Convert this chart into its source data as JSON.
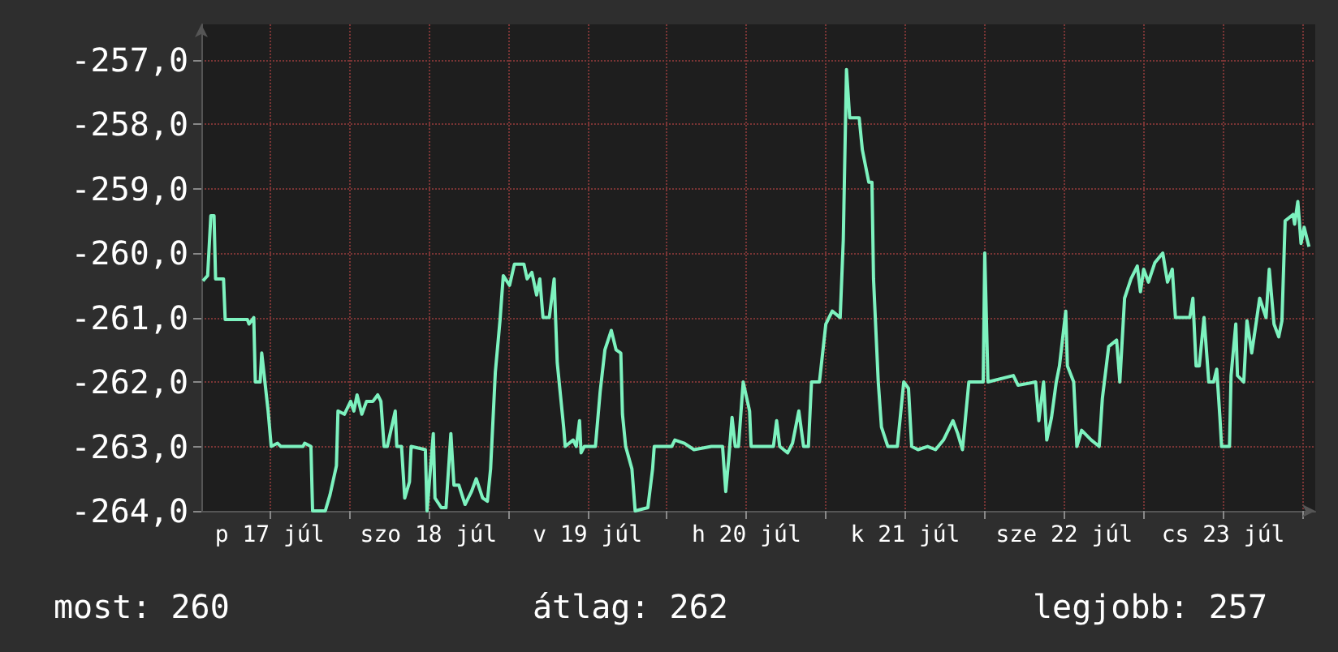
{
  "chart_data": {
    "type": "line",
    "color": "#7df2bf",
    "x": [
      "--07-17T01:55",
      "--07-17T02:38",
      "--07-17T03:07",
      "--07-17T03:36",
      "--07-17T03:50",
      "--07-17T05:02",
      "--07-17T05:17",
      "--07-17T08:38",
      "--07-17T08:53",
      "--07-17T09:36",
      "--07-17T09:50",
      "--07-17T10:34",
      "--07-17T10:48",
      "--07-17T11:17",
      "--07-17T11:46",
      "--07-17T12:14",
      "--07-17T13:12",
      "--07-17T13:41",
      "--07-17T17:02",
      "--07-17T17:17",
      "--07-17T18:14",
      "--07-17T18:29",
      "--07-17T20:24",
      "--07-17T21:07",
      "--07-17T22:05",
      "--07-17T22:19",
      "--07-17T23:17",
      "--07-18T00:14",
      "--07-18T00:43",
      "--07-18T01:12",
      "--07-18T01:55",
      "--07-18T02:38",
      "--07-18T03:36",
      "--07-18T04:19",
      "--07-18T04:48",
      "--07-18T05:17",
      "--07-18T05:46",
      "--07-18T06:58",
      "--07-18T07:12",
      "--07-18T07:55",
      "--07-18T08:24",
      "--07-18T09:07",
      "--07-18T09:22",
      "--07-18T11:31",
      "--07-18T11:46",
      "--07-18T12:43",
      "--07-18T12:58",
      "--07-18T13:55",
      "--07-18T14:38",
      "--07-18T15:22",
      "--07-18T15:50",
      "--07-18T16:34",
      "--07-18T17:31",
      "--07-18T18:29",
      "--07-18T19:12",
      "--07-18T20:10",
      "--07-18T20:53",
      "--07-18T21:22",
      "--07-18T22:05",
      "--07-18T22:48",
      "--07-18T23:17",
      "--07-19T00:14",
      "--07-19T00:58",
      "--07-19T02:24",
      "--07-19T02:53",
      "--07-19T03:36",
      "--07-19T04:19",
      "--07-19T04:48",
      "--07-19T05:17",
      "--07-19T06:14",
      "--07-19T06:58",
      "--07-19T07:26",
      "--07-19T08:24",
      "--07-19T08:38",
      "--07-19T09:50",
      "--07-19T10:19",
      "--07-19T10:48",
      "--07-19T11:02",
      "--07-19T11:31",
      "--07-19T13:12",
      "--07-19T13:55",
      "--07-19T14:38",
      "--07-19T15:36",
      "--07-19T16:19",
      "--07-19T17:02",
      "--07-19T17:17",
      "--07-19T17:46",
      "--07-19T18:43",
      "--07-19T19:12",
      "--07-19T21:07",
      "--07-19T21:50",
      "--07-19T22:05",
      "--07-20T00:43",
      "--07-20T01:12",
      "--07-20T02:38",
      "--07-20T04:05",
      "--07-20T06:43",
      "--07-20T08:24",
      "--07-20T08:53",
      "--07-20T09:22",
      "--07-20T09:50",
      "--07-20T10:19",
      "--07-20T10:48",
      "--07-20T11:31",
      "--07-20T12:29",
      "--07-20T12:43",
      "--07-20T16:05",
      "--07-20T16:34",
      "--07-20T17:02",
      "--07-20T18:14",
      "--07-20T18:58",
      "--07-20T19:55",
      "--07-20T20:38",
      "--07-20T21:22",
      "--07-20T21:50",
      "--07-20T23:02",
      "--07-21T00:00",
      "--07-21T00:58",
      "--07-21T02:10",
      "--07-21T02:38",
      "--07-21T03:07",
      "--07-21T03:36",
      "--07-21T05:02",
      "--07-21T05:31",
      "--07-21T06:29",
      "--07-21T06:58",
      "--07-21T07:12",
      "--07-21T07:55",
      "--07-21T08:24",
      "--07-21T09:22",
      "--07-21T10:48",
      "--07-21T11:46",
      "--07-21T12:29",
      "--07-21T12:58",
      "--07-21T13:55",
      "--07-21T15:22",
      "--07-21T16:34",
      "--07-21T17:46",
      "--07-21T19:12",
      "--07-21T19:55",
      "--07-21T20:38",
      "--07-21T21:36",
      "--07-21T23:46",
      "--07-22T00:00",
      "--07-22T00:29",
      "--07-22T04:19",
      "--07-22T05:02",
      "--07-22T07:41",
      "--07-22T08:10",
      "--07-22T08:53",
      "--07-22T09:22",
      "--07-22T10:05",
      "--07-22T10:48",
      "--07-22T11:17",
      "--07-22T12:14",
      "--07-22T12:29",
      "--07-22T13:26",
      "--07-22T13:55",
      "--07-22T14:38",
      "--07-22T16:05",
      "--07-22T17:17",
      "--07-22T17:46",
      "--07-22T18:43",
      "--07-22T19:55",
      "--07-22T20:24",
      "--07-22T21:07",
      "--07-22T22:05",
      "--07-22T23:02",
      "--07-22T23:31",
      "--07-23T00:00",
      "--07-23T00:43",
      "--07-23T01:41",
      "--07-23T02:53",
      "--07-23T03:36",
      "--07-23T04:19",
      "--07-23T04:48",
      "--07-23T06:58",
      "--07-23T07:26",
      "--07-23T07:55",
      "--07-23T08:24",
      "--07-23T09:07",
      "--07-23T09:50",
      "--07-23T10:34",
      "--07-23T11:02",
      "--07-23T11:31",
      "--07-23T11:46",
      "--07-23T12:58",
      "--07-23T13:12",
      "--07-23T13:55",
      "--07-23T14:10",
      "--07-23T15:07",
      "--07-23T15:36",
      "--07-23T16:19",
      "--07-23T17:02",
      "--07-23T17:31",
      "--07-23T18:29",
      "--07-23T18:58",
      "--07-23T19:41",
      "--07-23T20:24",
      "--07-23T20:53",
      "--07-23T21:22",
      "--07-23T22:34",
      "--07-23T22:48",
      "--07-23T23:17",
      "--07-23T23:46",
      "--07-24T00:14",
      "--07-24T00:58"
    ],
    "values": [
      -260.43,
      -260.35,
      -259.42,
      -259.42,
      -260.4,
      -260.4,
      -261.03,
      -261.03,
      -261.1,
      -261.0,
      -262.0,
      -262.0,
      -261.55,
      -262.0,
      -262.45,
      -263.0,
      -262.95,
      -263.0,
      -263.0,
      -262.95,
      -263.0,
      -264.0,
      -264.0,
      -263.75,
      -263.3,
      -262.45,
      -262.5,
      -262.3,
      -262.45,
      -262.2,
      -262.5,
      -262.3,
      -262.3,
      -262.2,
      -262.3,
      -263.0,
      -263.0,
      -262.45,
      -263.0,
      -263.0,
      -263.8,
      -263.55,
      -263.0,
      -263.05,
      -264.0,
      -262.8,
      -263.8,
      -263.95,
      -263.95,
      -262.8,
      -263.6,
      -263.6,
      -263.9,
      -263.7,
      -263.5,
      -263.8,
      -263.85,
      -263.35,
      -261.85,
      -261.03,
      -260.35,
      -260.5,
      -260.17,
      -260.17,
      -260.4,
      -260.3,
      -260.65,
      -260.4,
      -261.0,
      -261.0,
      -260.4,
      -261.7,
      -262.7,
      -263.0,
      -262.9,
      -263.0,
      -262.6,
      -263.1,
      -263.0,
      -263.0,
      -262.15,
      -261.5,
      -261.2,
      -261.5,
      -261.55,
      -262.5,
      -263.0,
      -263.35,
      -264.0,
      -263.95,
      -263.35,
      -263.0,
      -263.0,
      -262.9,
      -262.95,
      -263.05,
      -263.0,
      -263.0,
      -263.7,
      -263.15,
      -262.55,
      -263.0,
      -263.0,
      -262.0,
      -262.45,
      -263.0,
      -263.0,
      -262.6,
      -263.0,
      -263.1,
      -262.95,
      -262.45,
      -263.0,
      -263.0,
      -262.0,
      -262.0,
      -261.1,
      -260.9,
      -261.0,
      -259.8,
      -257.15,
      -257.9,
      -257.9,
      -258.4,
      -258.9,
      -258.9,
      -260.4,
      -262.0,
      -262.7,
      -263.0,
      -263.0,
      -262.0,
      -262.1,
      -263.0,
      -263.05,
      -263.0,
      -263.05,
      -262.9,
      -262.6,
      -262.8,
      -263.05,
      -262.0,
      -262.0,
      -260.0,
      -262.0,
      -261.9,
      -262.05,
      -262.0,
      -262.6,
      -262.0,
      -262.9,
      -262.55,
      -262.0,
      -261.75,
      -260.9,
      -261.75,
      -262.0,
      -263.0,
      -262.75,
      -262.9,
      -263.0,
      -262.25,
      -261.45,
      -261.35,
      -262.0,
      -260.7,
      -260.4,
      -260.2,
      -260.6,
      -260.25,
      -260.45,
      -260.15,
      -260.0,
      -260.45,
      -260.25,
      -261.0,
      -261.0,
      -260.7,
      -261.75,
      -261.75,
      -261.0,
      -262.0,
      -262.0,
      -261.8,
      -262.55,
      -263.0,
      -263.0,
      -261.9,
      -261.1,
      -261.9,
      -262.0,
      -261.05,
      -261.55,
      -261.05,
      -260.7,
      -261.0,
      -260.25,
      -261.1,
      -261.3,
      -261.05,
      -259.5,
      -259.4,
      -259.55,
      -259.2,
      -259.85,
      -259.6,
      -259.9
    ],
    "xlim": [
      "--07-17T01:41",
      "--07-24T01:55"
    ],
    "ylim": [
      -264,
      -256.45
    ],
    "xticks": [
      {
        "value": "--07-17T12:00",
        "label": "p 17 júl"
      },
      {
        "value": "--07-18",
        "label": null
      },
      {
        "value": "--07-18T12:00",
        "label": "szo 18 júl"
      },
      {
        "value": "--07-19",
        "label": null
      },
      {
        "value": "--07-19T12:00",
        "label": "v 19 júl"
      },
      {
        "value": "--07-20",
        "label": null
      },
      {
        "value": "--07-20T12:00",
        "label": "h 20 júl"
      },
      {
        "value": "--07-21",
        "label": null
      },
      {
        "value": "--07-21T12:00",
        "label": "k 21 júl"
      },
      {
        "value": "--07-22",
        "label": null
      },
      {
        "value": "--07-22T12:00",
        "label": "sze 22 júl"
      },
      {
        "value": "--07-23",
        "label": null
      },
      {
        "value": "--07-23T12:00",
        "label": "cs 23 júl"
      },
      {
        "value": "--07-24",
        "label": null
      }
    ],
    "yticks": [
      {
        "value": -264,
        "label": "-264,0"
      },
      {
        "value": -263,
        "label": "-263,0"
      },
      {
        "value": -262,
        "label": "-262,0"
      },
      {
        "value": -261,
        "label": "-261,0"
      },
      {
        "value": -260,
        "label": "-260,0"
      },
      {
        "value": -259,
        "label": "-259,0"
      },
      {
        "value": -258,
        "label": "-258,0"
      },
      {
        "value": -257,
        "label": "-257,0"
      }
    ],
    "grid": true,
    "marker": "none",
    "line_style": "solid",
    "annotations": [
      "most: 260",
      "átlag: 262",
      "legjobb: 257"
    ]
  }
}
